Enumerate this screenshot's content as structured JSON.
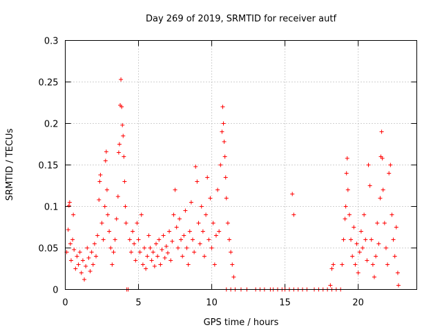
{
  "chart_data": {
    "type": "scatter",
    "title": "Day 269 of 2019, SRMTID for receiver autf",
    "xlabel": "GPS time / hours",
    "ylabel": "SRMTID / TECUs",
    "xlim": [
      0,
      24
    ],
    "ylim": [
      0,
      0.3
    ],
    "x_ticks": [
      0,
      5,
      10,
      15,
      20
    ],
    "x_tick_labels": [
      "0",
      "5",
      "10",
      "15",
      "20"
    ],
    "y_ticks": [
      0,
      0.05,
      0.1,
      0.15,
      0.2,
      0.25,
      0.3
    ],
    "y_tick_labels": [
      "0",
      "0.05",
      "0.1",
      "0.15",
      "0.2",
      "0.25",
      "0.3"
    ],
    "grid": true,
    "marker": "+",
    "series": [
      {
        "name": "SRMTID",
        "color": "#ff0000",
        "points": [
          [
            0.1,
            0.045
          ],
          [
            0.2,
            0.072
          ],
          [
            0.25,
            0.101
          ],
          [
            0.3,
            0.105
          ],
          [
            0.35,
            0.055
          ],
          [
            0.4,
            0.035
          ],
          [
            0.5,
            0.06
          ],
          [
            0.55,
            0.09
          ],
          [
            0.6,
            0.048
          ],
          [
            0.7,
            0.025
          ],
          [
            0.8,
            0.04
          ],
          [
            0.9,
            0.03
          ],
          [
            1.0,
            0.045
          ],
          [
            1.1,
            0.02
          ],
          [
            1.2,
            0.035
          ],
          [
            1.3,
            0.012
          ],
          [
            1.4,
            0.028
          ],
          [
            1.5,
            0.05
          ],
          [
            1.6,
            0.038
          ],
          [
            1.7,
            0.022
          ],
          [
            1.8,
            0.045
          ],
          [
            1.9,
            0.03
          ],
          [
            2.0,
            0.055
          ],
          [
            2.1,
            0.04
          ],
          [
            2.2,
            0.065
          ],
          [
            2.3,
            0.108
          ],
          [
            2.35,
            0.13
          ],
          [
            2.4,
            0.138
          ],
          [
            2.5,
            0.08
          ],
          [
            2.6,
            0.06
          ],
          [
            2.7,
            0.1
          ],
          [
            2.75,
            0.155
          ],
          [
            2.8,
            0.166
          ],
          [
            2.85,
            0.12
          ],
          [
            2.9,
            0.09
          ],
          [
            3.0,
            0.07
          ],
          [
            3.1,
            0.05
          ],
          [
            3.2,
            0.03
          ],
          [
            3.3,
            0.045
          ],
          [
            3.4,
            0.06
          ],
          [
            3.5,
            0.085
          ],
          [
            3.6,
            0.112
          ],
          [
            3.65,
            0.165
          ],
          [
            3.7,
            0.175
          ],
          [
            3.75,
            0.222
          ],
          [
            3.8,
            0.253
          ],
          [
            3.85,
            0.22
          ],
          [
            3.9,
            0.198
          ],
          [
            3.95,
            0.185
          ],
          [
            4.0,
            0.16
          ],
          [
            4.05,
            0.13
          ],
          [
            4.1,
            0.1
          ],
          [
            4.15,
            0.08
          ],
          [
            4.2,
            0.0
          ],
          [
            4.3,
            0.0
          ],
          [
            4.4,
            0.06
          ],
          [
            4.5,
            0.045
          ],
          [
            4.6,
            0.07
          ],
          [
            4.7,
            0.055
          ],
          [
            4.8,
            0.035
          ],
          [
            4.9,
            0.08
          ],
          [
            5.0,
            0.06
          ],
          [
            5.1,
            0.045
          ],
          [
            5.2,
            0.09
          ],
          [
            5.3,
            0.03
          ],
          [
            5.4,
            0.05
          ],
          [
            5.5,
            0.025
          ],
          [
            5.6,
            0.04
          ],
          [
            5.7,
            0.065
          ],
          [
            5.8,
            0.05
          ],
          [
            5.9,
            0.035
          ],
          [
            6.0,
            0.045
          ],
          [
            6.1,
            0.028
          ],
          [
            6.2,
            0.055
          ],
          [
            6.3,
            0.04
          ],
          [
            6.4,
            0.06
          ],
          [
            6.5,
            0.03
          ],
          [
            6.6,
            0.048
          ],
          [
            6.7,
            0.065
          ],
          [
            6.8,
            0.038
          ],
          [
            6.9,
            0.052
          ],
          [
            7.0,
            0.044
          ],
          [
            7.1,
            0.07
          ],
          [
            7.2,
            0.035
          ],
          [
            7.3,
            0.058
          ],
          [
            7.4,
            0.09
          ],
          [
            7.5,
            0.12
          ],
          [
            7.6,
            0.075
          ],
          [
            7.7,
            0.05
          ],
          [
            7.8,
            0.085
          ],
          [
            7.9,
            0.06
          ],
          [
            8.0,
            0.04
          ],
          [
            8.1,
            0.065
          ],
          [
            8.2,
            0.095
          ],
          [
            8.3,
            0.05
          ],
          [
            8.4,
            0.03
          ],
          [
            8.5,
            0.07
          ],
          [
            8.6,
            0.105
          ],
          [
            8.7,
            0.06
          ],
          [
            8.8,
            0.045
          ],
          [
            8.9,
            0.148
          ],
          [
            9.0,
            0.13
          ],
          [
            9.1,
            0.08
          ],
          [
            9.2,
            0.055
          ],
          [
            9.3,
            0.1
          ],
          [
            9.4,
            0.07
          ],
          [
            9.5,
            0.04
          ],
          [
            9.6,
            0.09
          ],
          [
            9.7,
            0.135
          ],
          [
            9.8,
            0.06
          ],
          [
            9.9,
            0.11
          ],
          [
            10.0,
            0.05
          ],
          [
            10.1,
            0.08
          ],
          [
            10.2,
            0.03
          ],
          [
            10.3,
            0.065
          ],
          [
            10.4,
            0.12
          ],
          [
            10.5,
            0.07
          ],
          [
            10.6,
            0.15
          ],
          [
            10.7,
            0.19
          ],
          [
            10.75,
            0.22
          ],
          [
            10.8,
            0.2
          ],
          [
            10.85,
            0.178
          ],
          [
            10.9,
            0.16
          ],
          [
            10.95,
            0.135
          ],
          [
            11.0,
            0.11
          ],
          [
            11.1,
            0.08
          ],
          [
            11.2,
            0.06
          ],
          [
            11.3,
            0.045
          ],
          [
            11.4,
            0.03
          ],
          [
            11.5,
            0.015
          ],
          [
            11.0,
            0.0
          ],
          [
            11.3,
            0.0
          ],
          [
            11.6,
            0.0
          ],
          [
            12.0,
            0.0
          ],
          [
            12.4,
            0.0
          ],
          [
            13.0,
            0.0
          ],
          [
            13.3,
            0.0
          ],
          [
            13.6,
            0.0
          ],
          [
            14.0,
            0.0
          ],
          [
            14.2,
            0.0
          ],
          [
            14.5,
            0.0
          ],
          [
            14.8,
            0.0
          ],
          [
            15.0,
            0.0
          ],
          [
            15.5,
            0.115
          ],
          [
            15.6,
            0.09
          ],
          [
            15.3,
            0.0
          ],
          [
            15.6,
            0.0
          ],
          [
            15.9,
            0.0
          ],
          [
            16.2,
            0.0
          ],
          [
            16.5,
            0.0
          ],
          [
            17.0,
            0.0
          ],
          [
            17.3,
            0.0
          ],
          [
            17.6,
            0.0
          ],
          [
            17.9,
            0.0
          ],
          [
            18.1,
            0.005
          ],
          [
            18.2,
            0.025
          ],
          [
            18.3,
            0.03
          ],
          [
            18.2,
            0.0
          ],
          [
            18.5,
            0.0
          ],
          [
            18.8,
            0.0
          ],
          [
            18.9,
            0.03
          ],
          [
            19.0,
            0.06
          ],
          [
            19.1,
            0.085
          ],
          [
            19.15,
            0.1
          ],
          [
            19.2,
            0.14
          ],
          [
            19.25,
            0.158
          ],
          [
            19.3,
            0.12
          ],
          [
            19.4,
            0.09
          ],
          [
            19.5,
            0.06
          ],
          [
            19.6,
            0.04
          ],
          [
            19.7,
            0.075
          ],
          [
            19.8,
            0.03
          ],
          [
            19.9,
            0.055
          ],
          [
            20.0,
            0.02
          ],
          [
            20.1,
            0.045
          ],
          [
            20.2,
            0.07
          ],
          [
            20.3,
            0.05
          ],
          [
            20.4,
            0.09
          ],
          [
            20.5,
            0.06
          ],
          [
            20.6,
            0.035
          ],
          [
            20.7,
            0.15
          ],
          [
            20.8,
            0.125
          ],
          [
            20.9,
            0.06
          ],
          [
            21.0,
            0.03
          ],
          [
            21.1,
            0.015
          ],
          [
            21.2,
            0.04
          ],
          [
            21.3,
            0.08
          ],
          [
            21.4,
            0.055
          ],
          [
            21.5,
            0.11
          ],
          [
            21.55,
            0.16
          ],
          [
            21.6,
            0.19
          ],
          [
            21.65,
            0.158
          ],
          [
            21.7,
            0.12
          ],
          [
            21.8,
            0.08
          ],
          [
            21.9,
            0.05
          ],
          [
            22.0,
            0.03
          ],
          [
            22.1,
            0.14
          ],
          [
            22.2,
            0.15
          ],
          [
            22.3,
            0.09
          ],
          [
            22.4,
            0.06
          ],
          [
            22.5,
            0.04
          ],
          [
            22.6,
            0.075
          ],
          [
            22.7,
            0.02
          ],
          [
            22.75,
            0.005
          ]
        ]
      }
    ]
  }
}
